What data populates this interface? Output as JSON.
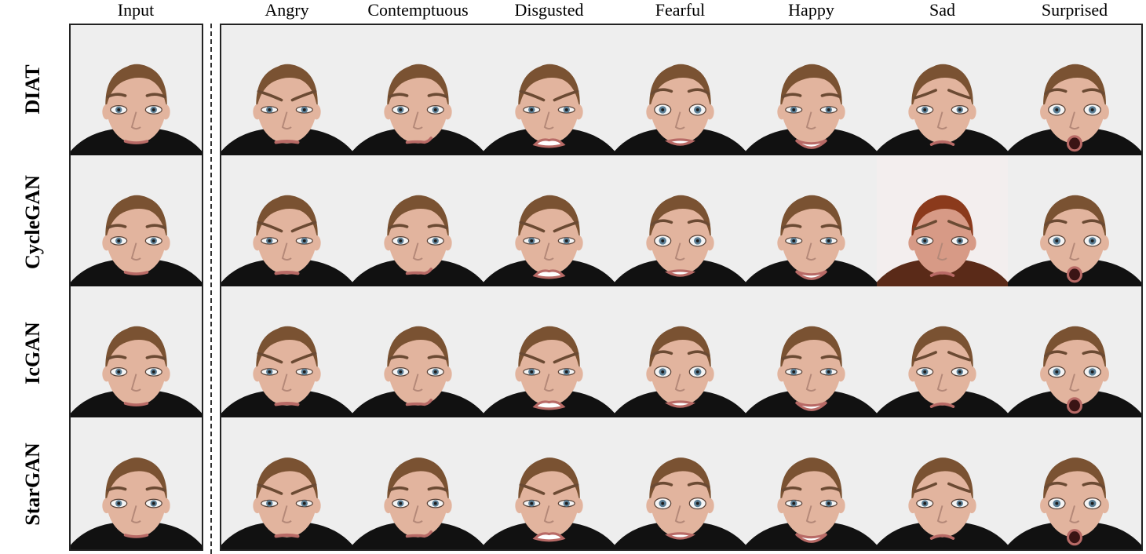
{
  "input_header": "Input",
  "column_headers": [
    "Angry",
    "Contemptuous",
    "Disgusted",
    "Fearful",
    "Happy",
    "Sad",
    "Surprised"
  ],
  "row_labels": [
    "DIAT",
    "CycleGAN",
    "IcGAN",
    "StarGAN"
  ],
  "expressions": [
    "neutral",
    "angry",
    "contemptuous",
    "disgusted",
    "fearful",
    "happy",
    "sad",
    "surprised"
  ],
  "colors": {
    "background_light": "#eeeeee",
    "skin": "#e2b49e",
    "hair": "#7a5232",
    "shirt": "#111111",
    "lips": "#b86a66",
    "iris": "#5c7f96"
  }
}
